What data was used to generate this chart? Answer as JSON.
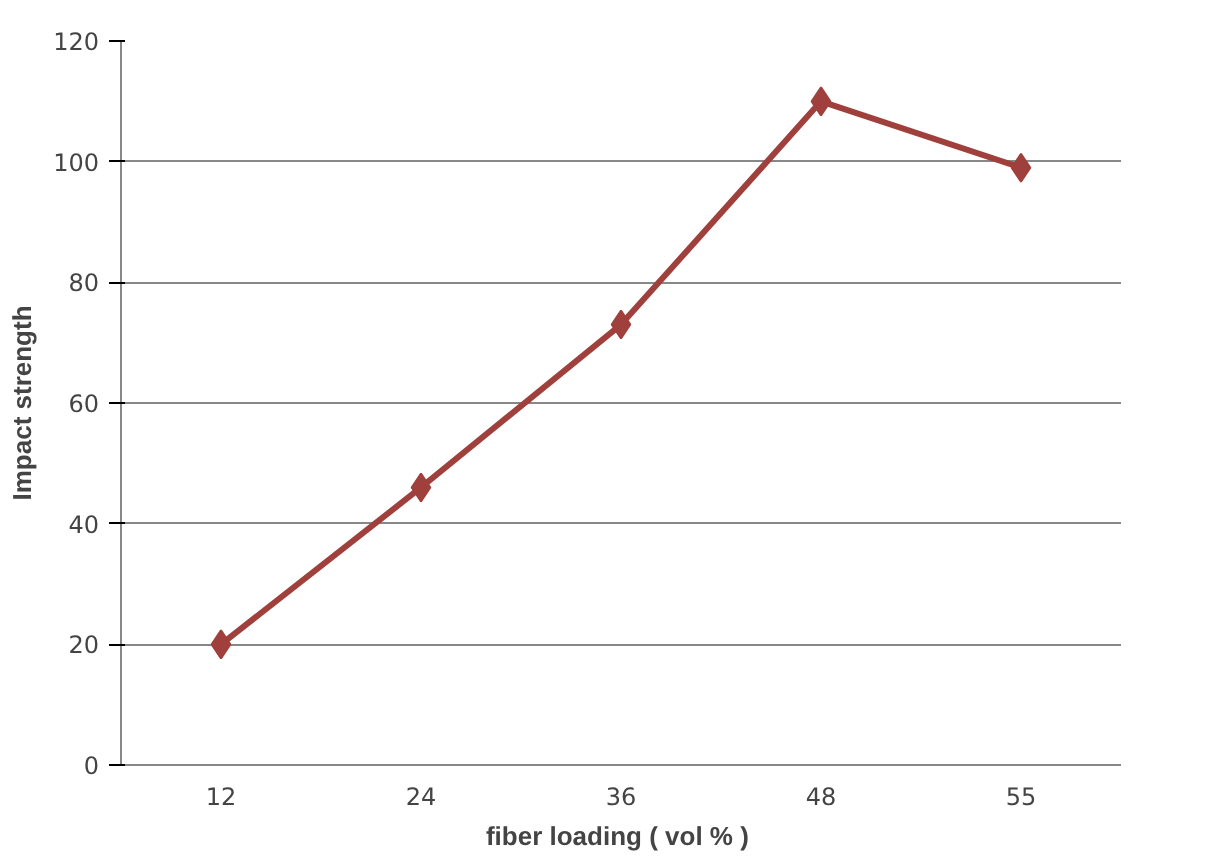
{
  "chart_data": {
    "type": "line",
    "xlabel": "fiber loading  ( vol % )",
    "ylabel": "Impact strength",
    "categories": [
      "12",
      "24",
      "36",
      "48",
      "55"
    ],
    "series": [
      {
        "color": "#a0403c",
        "values": [
          20,
          46,
          73,
          110,
          99
        ]
      }
    ],
    "ylim": [
      0,
      120
    ],
    "yticks": [
      0,
      20,
      40,
      60,
      80,
      100,
      120
    ],
    "grid": "y",
    "marker": "diamond",
    "line_style": "solid"
  }
}
